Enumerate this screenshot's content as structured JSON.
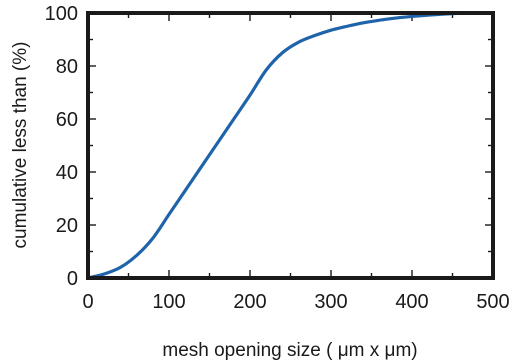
{
  "chart_data": {
    "type": "line",
    "xlabel": "mesh opening size ( μm x μm)",
    "ylabel": "cumulative less than (%)",
    "xlim": [
      0,
      500
    ],
    "ylim": [
      0,
      100
    ],
    "x_ticks": [
      "0",
      "100",
      "200",
      "300",
      "400",
      "500"
    ],
    "y_ticks": [
      "0",
      "20",
      "40",
      "60",
      "80",
      "100"
    ],
    "grid": false,
    "series_color": "#1f63aa",
    "series": [
      {
        "x": [
          0,
          20,
          40,
          60,
          80,
          100,
          120,
          140,
          160,
          180,
          200,
          220,
          240,
          260,
          280,
          300,
          320,
          340,
          360,
          380,
          400,
          420,
          440,
          460,
          480,
          500
        ],
        "y": [
          0,
          1.5,
          4,
          8.5,
          15,
          24,
          33,
          42,
          51,
          60,
          69,
          78.5,
          85,
          89,
          91.5,
          93.5,
          95,
          96.3,
          97.3,
          98.1,
          98.7,
          99.2,
          99.6,
          99.9,
          100,
          100
        ]
      }
    ]
  }
}
